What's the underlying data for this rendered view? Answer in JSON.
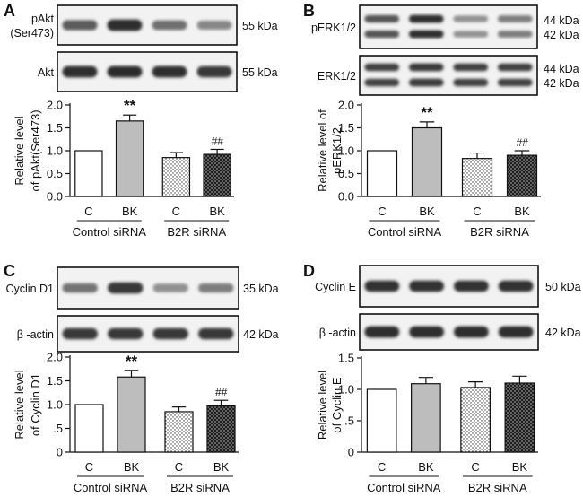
{
  "panels": [
    {
      "letter": "A",
      "blots": [
        {
          "label": [
            "pAkt",
            "(Ser473)"
          ],
          "kda": [
            "55 kDa"
          ],
          "bands": 1,
          "intensity": [
            0.72,
            0.95,
            0.62,
            0.5
          ]
        },
        {
          "label": [
            "Akt"
          ],
          "kda": [
            "55 kDa"
          ],
          "bands": 1,
          "intensity": [
            0.95,
            0.97,
            0.95,
            0.9
          ]
        }
      ],
      "chart_data": {
        "type": "bar",
        "ylabel": [
          "Relative level",
          "of pAkt(Ser473)"
        ],
        "ylim": [
          0,
          2.0
        ],
        "yticks": [
          "0.0",
          "0.5",
          "1.0",
          "1.5",
          "2.0"
        ],
        "categories": [
          "C",
          "BK",
          "C",
          "BK"
        ],
        "values": [
          1.0,
          1.65,
          0.85,
          0.92
        ],
        "errors": [
          0,
          0.13,
          0.11,
          0.11
        ],
        "annotations": [
          "",
          "**",
          "",
          "##"
        ],
        "groups": [
          "Control siRNA",
          "B2R siRNA"
        ]
      }
    },
    {
      "letter": "B",
      "blots": [
        {
          "label": [
            "pERK1/2"
          ],
          "kda": [
            "44 kDa",
            "42 kDa"
          ],
          "bands": 2,
          "intensity": [
            0.75,
            0.95,
            0.45,
            0.55
          ]
        },
        {
          "label": [
            "ERK1/2"
          ],
          "kda": [
            "44 kDa",
            "42 kDa"
          ],
          "bands": 2,
          "intensity": [
            0.85,
            0.88,
            0.85,
            0.85
          ]
        }
      ],
      "chart_data": {
        "type": "bar",
        "ylabel": [
          "Relative level of",
          "pERK1/2"
        ],
        "ylim": [
          0,
          2.0
        ],
        "yticks": [
          "0.0",
          "0.5",
          "1.0",
          "1.5",
          "2.0"
        ],
        "categories": [
          "C",
          "BK",
          "C",
          "BK"
        ],
        "values": [
          1.0,
          1.5,
          0.83,
          0.9
        ],
        "errors": [
          0,
          0.13,
          0.12,
          0.1
        ],
        "annotations": [
          "",
          "**",
          "",
          "##"
        ],
        "groups": [
          "Control siRNA",
          "B2R siRNA"
        ]
      }
    },
    {
      "letter": "C",
      "blots": [
        {
          "label": [
            "Cyclin D1"
          ],
          "kda": [
            "35 kDa"
          ],
          "bands": 1,
          "intensity": [
            0.6,
            0.9,
            0.45,
            0.55
          ]
        },
        {
          "label": [
            "β -actin"
          ],
          "kda": [
            "42 kDa"
          ],
          "bands": 1,
          "intensity": [
            0.9,
            0.9,
            0.9,
            0.9
          ]
        }
      ],
      "chart_data": {
        "type": "bar",
        "ylabel": [
          "Relative level",
          "of Cyclin D1"
        ],
        "ylim": [
          0,
          2.0
        ],
        "yticks": [
          "0",
          ".5",
          "1.0",
          "1.5",
          "2.0"
        ],
        "categories": [
          "C",
          "BK",
          "C",
          "BK"
        ],
        "values": [
          1.0,
          1.58,
          0.85,
          0.97
        ],
        "errors": [
          0,
          0.14,
          0.1,
          0.12
        ],
        "annotations": [
          "",
          "**",
          "",
          "##"
        ],
        "groups": [
          "Control siRNA",
          "B2R siRNA"
        ]
      }
    },
    {
      "letter": "D",
      "blots": [
        {
          "label": [
            "Cyclin E"
          ],
          "kda": [
            "50 kDa"
          ],
          "bands": 1,
          "intensity": [
            0.92,
            0.92,
            0.92,
            0.92
          ]
        },
        {
          "label": [
            "β -actin"
          ],
          "kda": [
            "42 kDa"
          ],
          "bands": 1,
          "intensity": [
            0.95,
            0.95,
            0.95,
            0.95
          ]
        }
      ],
      "chart_data": {
        "type": "bar",
        "ylabel": [
          "Relative level",
          "of Cyclin E"
        ],
        "ylim": [
          0,
          1.5
        ],
        "yticks": [
          "0",
          ".5",
          "1.0",
          "1.5"
        ],
        "categories": [
          "C",
          "BK",
          "C",
          "BK"
        ],
        "values": [
          1.0,
          1.09,
          1.03,
          1.1
        ],
        "errors": [
          0,
          0.1,
          0.09,
          0.11
        ],
        "annotations": [
          "",
          "",
          "",
          ""
        ],
        "groups": [
          "Control siRNA",
          "B2R siRNA"
        ]
      }
    }
  ]
}
